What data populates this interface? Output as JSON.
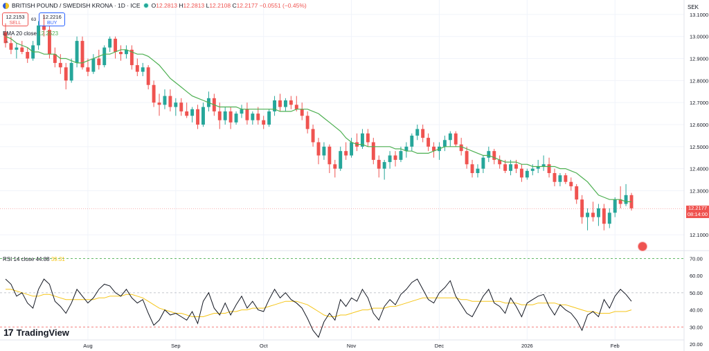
{
  "header": {
    "symbol": "BRITISH POUND / SWEDISH KRONA · 1D · ICE",
    "ohlc": [
      {
        "k": "O",
        "v": "12.2813"
      },
      {
        "k": "H",
        "v": "12.2813"
      },
      {
        "k": "L",
        "v": "12.2108"
      },
      {
        "k": "C",
        "v": "12.2177"
      },
      {
        "k": "",
        "v": "−0.0551 (−0.45%)"
      }
    ]
  },
  "trade": {
    "sell_price": "12.2153",
    "sell_label": "SELL",
    "spread": "63",
    "buy_price": "12.2216",
    "buy_label": "BUY"
  },
  "ema_label": {
    "name": "EMA 20 close",
    "value": "12.2523"
  },
  "rsi_label": {
    "name": "RSI 14 close",
    "value": "44.88",
    "ma_value": "39.31"
  },
  "currency": "SEK",
  "last_price": {
    "price": "12.2177",
    "countdown": "08:14:00"
  },
  "logo_text": "TradingView",
  "colors": {
    "up": "#26a69a",
    "down": "#ef5350",
    "ema": "#4caf50",
    "rsi": "#131722",
    "rsi_ma": "#f5c518"
  },
  "chart_data": [
    {
      "type": "candlestick",
      "title": "BRITISH POUND / SWEDISH KRONA · 1D · ICE",
      "ylabel": "SEK",
      "ylim": [
        12.05,
        13.15
      ],
      "y_ticks": [
        "13.1000",
        "13.0000",
        "12.9000",
        "12.8000",
        "12.7000",
        "12.6000",
        "12.5000",
        "12.4000",
        "12.3000",
        "12.1000"
      ],
      "x_ticks": [
        "Aug",
        "Sep",
        "Oct",
        "Nov",
        "Dec",
        "2026",
        "Feb"
      ],
      "last_close": 12.2177,
      "series": [
        {
          "name": "EMA 20 close",
          "values": [
            13.0,
            12.99,
            12.97,
            12.96,
            12.95,
            12.93,
            12.93,
            12.92,
            12.92,
            12.92,
            12.9,
            12.9,
            12.89,
            12.88,
            12.88,
            12.89,
            12.9,
            12.91,
            12.92,
            12.92,
            12.93,
            12.94,
            12.94,
            12.93,
            12.92,
            12.92,
            12.91,
            12.89,
            12.87,
            12.84,
            12.81,
            12.79,
            12.77,
            12.75,
            12.73,
            12.72,
            12.71,
            12.7,
            12.69,
            12.68,
            12.68,
            12.68,
            12.68,
            12.67,
            12.67,
            12.67,
            12.67,
            12.67,
            12.67,
            12.67,
            12.66,
            12.66,
            12.66,
            12.67,
            12.67,
            12.67,
            12.66,
            12.65,
            12.63,
            12.61,
            12.59,
            12.57,
            12.54,
            12.52,
            12.51,
            12.51,
            12.5,
            12.5,
            12.5,
            12.5,
            12.5,
            12.49,
            12.49,
            12.48,
            12.48,
            12.47,
            12.47,
            12.47,
            12.48,
            12.49,
            12.5,
            12.5,
            12.5,
            12.5,
            12.49,
            12.48,
            12.47,
            12.46,
            12.46,
            12.45,
            12.44,
            12.43,
            12.43,
            12.43,
            12.42,
            12.42,
            12.41,
            12.41,
            12.41,
            12.41,
            12.41,
            12.4,
            12.4,
            12.39,
            12.38,
            12.36,
            12.34,
            12.31,
            12.28,
            12.27,
            12.26,
            12.26,
            12.26,
            12.25,
            12.25
          ]
        }
      ],
      "candles": [
        [
          13.02,
          13.06,
          12.95,
          12.97
        ],
        [
          12.97,
          13.0,
          12.92,
          12.94
        ],
        [
          12.94,
          12.97,
          12.9,
          12.95
        ],
        [
          12.95,
          12.98,
          12.92,
          12.93
        ],
        [
          12.93,
          12.95,
          12.88,
          12.9
        ],
        [
          12.9,
          12.98,
          12.89,
          12.96
        ],
        [
          12.96,
          13.07,
          12.94,
          13.05
        ],
        [
          13.05,
          13.1,
          13.0,
          13.03
        ],
        [
          13.03,
          13.05,
          12.9,
          12.92
        ],
        [
          12.92,
          12.95,
          12.86,
          12.88
        ],
        [
          12.88,
          12.92,
          12.83,
          12.86
        ],
        [
          12.86,
          12.88,
          12.76,
          12.8
        ],
        [
          12.8,
          12.9,
          12.79,
          12.88
        ],
        [
          12.88,
          13.0,
          12.86,
          12.98
        ],
        [
          12.98,
          13.0,
          12.85,
          12.86
        ],
        [
          12.86,
          12.9,
          12.82,
          12.84
        ],
        [
          12.84,
          12.92,
          12.83,
          12.9
        ],
        [
          12.9,
          12.94,
          12.85,
          12.87
        ],
        [
          12.87,
          12.96,
          12.86,
          12.95
        ],
        [
          12.95,
          13.0,
          12.93,
          12.99
        ],
        [
          12.99,
          13.0,
          12.9,
          12.93
        ],
        [
          12.93,
          12.96,
          12.89,
          12.92
        ],
        [
          12.92,
          12.96,
          12.9,
          12.94
        ],
        [
          12.94,
          12.96,
          12.85,
          12.87
        ],
        [
          12.87,
          12.9,
          12.82,
          12.84
        ],
        [
          12.84,
          12.88,
          12.82,
          12.86
        ],
        [
          12.86,
          12.87,
          12.76,
          12.78
        ],
        [
          12.78,
          12.8,
          12.68,
          12.7
        ],
        [
          12.7,
          12.74,
          12.64,
          12.69
        ],
        [
          12.69,
          12.76,
          12.67,
          12.73
        ],
        [
          12.73,
          12.76,
          12.66,
          12.68
        ],
        [
          12.68,
          12.72,
          12.64,
          12.7
        ],
        [
          12.7,
          12.72,
          12.64,
          12.66
        ],
        [
          12.66,
          12.7,
          12.63,
          12.64
        ],
        [
          12.64,
          12.68,
          12.61,
          12.67
        ],
        [
          12.67,
          12.69,
          12.58,
          12.6
        ],
        [
          12.6,
          12.7,
          12.59,
          12.68
        ],
        [
          12.68,
          12.75,
          12.66,
          12.72
        ],
        [
          12.72,
          12.74,
          12.64,
          12.66
        ],
        [
          12.66,
          12.7,
          12.58,
          12.62
        ],
        [
          12.62,
          12.68,
          12.6,
          12.66
        ],
        [
          12.66,
          12.68,
          12.58,
          12.61
        ],
        [
          12.61,
          12.66,
          12.6,
          12.65
        ],
        [
          12.65,
          12.69,
          12.63,
          12.67
        ],
        [
          12.67,
          12.7,
          12.6,
          12.62
        ],
        [
          12.62,
          12.66,
          12.6,
          12.65
        ],
        [
          12.65,
          12.68,
          12.6,
          12.62
        ],
        [
          12.62,
          12.64,
          12.58,
          12.6
        ],
        [
          12.6,
          12.67,
          12.59,
          12.66
        ],
        [
          12.66,
          12.73,
          12.64,
          12.71
        ],
        [
          12.71,
          12.74,
          12.66,
          12.68
        ],
        [
          12.68,
          12.72,
          12.66,
          12.71
        ],
        [
          12.71,
          12.73,
          12.67,
          12.69
        ],
        [
          12.69,
          12.73,
          12.66,
          12.67
        ],
        [
          12.67,
          12.7,
          12.62,
          12.64
        ],
        [
          12.64,
          12.66,
          12.56,
          12.58
        ],
        [
          12.58,
          12.6,
          12.5,
          12.52
        ],
        [
          12.52,
          12.54,
          12.42,
          12.46
        ],
        [
          12.46,
          12.52,
          12.44,
          12.5
        ],
        [
          12.5,
          12.51,
          12.38,
          12.42
        ],
        [
          12.42,
          12.44,
          12.36,
          12.4
        ],
        [
          12.4,
          12.5,
          12.39,
          12.48
        ],
        [
          12.48,
          12.52,
          12.44,
          12.46
        ],
        [
          12.46,
          12.54,
          12.45,
          12.52
        ],
        [
          12.52,
          12.56,
          12.48,
          12.5
        ],
        [
          12.5,
          12.58,
          12.49,
          12.56
        ],
        [
          12.56,
          12.58,
          12.5,
          12.52
        ],
        [
          12.52,
          12.54,
          12.42,
          12.44
        ],
        [
          12.44,
          12.46,
          12.36,
          12.4
        ],
        [
          12.4,
          12.44,
          12.35,
          12.43
        ],
        [
          12.43,
          12.48,
          12.4,
          12.46
        ],
        [
          12.46,
          12.48,
          12.41,
          12.44
        ],
        [
          12.44,
          12.5,
          12.43,
          12.48
        ],
        [
          12.48,
          12.52,
          12.45,
          12.5
        ],
        [
          12.5,
          12.56,
          12.48,
          12.55
        ],
        [
          12.55,
          12.6,
          12.53,
          12.58
        ],
        [
          12.58,
          12.6,
          12.52,
          12.54
        ],
        [
          12.54,
          12.56,
          12.48,
          12.5
        ],
        [
          12.5,
          12.52,
          12.45,
          12.48
        ],
        [
          12.48,
          12.52,
          12.44,
          12.5
        ],
        [
          12.5,
          12.55,
          12.48,
          12.53
        ],
        [
          12.53,
          12.57,
          12.5,
          12.56
        ],
        [
          12.56,
          12.57,
          12.5,
          12.51
        ],
        [
          12.51,
          12.54,
          12.46,
          12.48
        ],
        [
          12.48,
          12.5,
          12.4,
          12.42
        ],
        [
          12.42,
          12.44,
          12.36,
          12.38
        ],
        [
          12.38,
          12.42,
          12.36,
          12.4
        ],
        [
          12.4,
          12.46,
          12.38,
          12.45
        ],
        [
          12.45,
          12.5,
          12.43,
          12.48
        ],
        [
          12.48,
          12.49,
          12.42,
          12.44
        ],
        [
          12.44,
          12.46,
          12.4,
          12.42
        ],
        [
          12.42,
          12.44,
          12.38,
          12.39
        ],
        [
          12.39,
          12.44,
          12.37,
          12.42
        ],
        [
          12.42,
          12.44,
          12.38,
          12.4
        ],
        [
          12.4,
          12.42,
          12.34,
          12.36
        ],
        [
          12.36,
          12.4,
          12.35,
          12.39
        ],
        [
          12.39,
          12.42,
          12.37,
          12.4
        ],
        [
          12.4,
          12.44,
          12.38,
          12.41
        ],
        [
          12.41,
          12.46,
          12.39,
          12.42
        ],
        [
          12.42,
          12.45,
          12.36,
          12.38
        ],
        [
          12.38,
          12.4,
          12.32,
          12.34
        ],
        [
          12.34,
          12.38,
          12.32,
          12.37
        ],
        [
          12.37,
          12.38,
          12.33,
          12.34
        ],
        [
          12.34,
          12.36,
          12.3,
          12.32
        ],
        [
          12.32,
          12.33,
          12.24,
          12.26
        ],
        [
          12.26,
          12.28,
          12.15,
          12.18
        ],
        [
          12.18,
          12.22,
          12.12,
          12.2
        ],
        [
          12.2,
          12.25,
          12.16,
          12.18
        ],
        [
          12.18,
          12.24,
          12.14,
          12.22
        ],
        [
          12.22,
          12.24,
          12.12,
          12.15
        ],
        [
          12.15,
          12.22,
          12.13,
          12.2
        ],
        [
          12.2,
          12.27,
          12.18,
          12.26
        ],
        [
          12.26,
          12.32,
          12.22,
          12.24
        ],
        [
          12.24,
          12.33,
          12.23,
          12.28
        ],
        [
          12.28,
          12.29,
          12.21,
          12.22
        ]
      ]
    },
    {
      "type": "line",
      "title": "RSI 14 close",
      "ylim": [
        20,
        73
      ],
      "y_ticks": [
        "70.00",
        "60.00",
        "50.00",
        "40.00",
        "30.00",
        "20.00"
      ],
      "levels": [
        70,
        50,
        30
      ],
      "series": [
        {
          "name": "RSI 14 close",
          "values": [
            58,
            55,
            48,
            50,
            44,
            41,
            52,
            58,
            55,
            45,
            42,
            38,
            44,
            52,
            48,
            44,
            47,
            52,
            55,
            54,
            50,
            48,
            52,
            47,
            44,
            46,
            38,
            31,
            34,
            40,
            37,
            38,
            36,
            34,
            39,
            32,
            45,
            50,
            41,
            37,
            44,
            37,
            43,
            48,
            41,
            45,
            40,
            39,
            46,
            52,
            47,
            50,
            46,
            44,
            41,
            35,
            28,
            24,
            33,
            38,
            34,
            46,
            42,
            47,
            45,
            52,
            47,
            38,
            34,
            42,
            46,
            43,
            49,
            52,
            56,
            58,
            52,
            46,
            44,
            50,
            53,
            57,
            48,
            43,
            38,
            36,
            42,
            48,
            52,
            44,
            42,
            38,
            47,
            42,
            36,
            44,
            46,
            48,
            49,
            42,
            37,
            43,
            40,
            38,
            34,
            28,
            37,
            39,
            36,
            46,
            41,
            48,
            52,
            49,
            45
          ]
        },
        {
          "name": "RSI MA",
          "values": [
            52,
            52,
            51,
            50,
            49,
            48,
            48,
            49,
            49,
            48,
            47,
            46,
            46,
            46,
            46,
            46,
            46,
            47,
            47,
            48,
            48,
            48,
            49,
            49,
            48,
            47,
            45,
            43,
            41,
            40,
            39,
            38,
            38,
            37,
            36,
            36,
            36,
            37,
            38,
            38,
            38,
            39,
            39,
            40,
            40,
            41,
            41,
            41,
            42,
            43,
            44,
            45,
            45,
            45,
            44,
            43,
            41,
            39,
            37,
            36,
            36,
            37,
            37,
            38,
            39,
            40,
            40,
            41,
            41,
            41,
            42,
            42,
            43,
            44,
            45,
            46,
            47,
            47,
            47,
            47,
            47,
            47,
            47,
            46,
            46,
            45,
            45,
            45,
            45,
            45,
            45,
            44,
            44,
            44,
            43,
            43,
            43,
            44,
            44,
            44,
            44,
            43,
            43,
            42,
            41,
            40,
            39,
            39,
            38,
            38,
            38,
            39,
            39,
            39,
            40
          ]
        }
      ]
    }
  ]
}
